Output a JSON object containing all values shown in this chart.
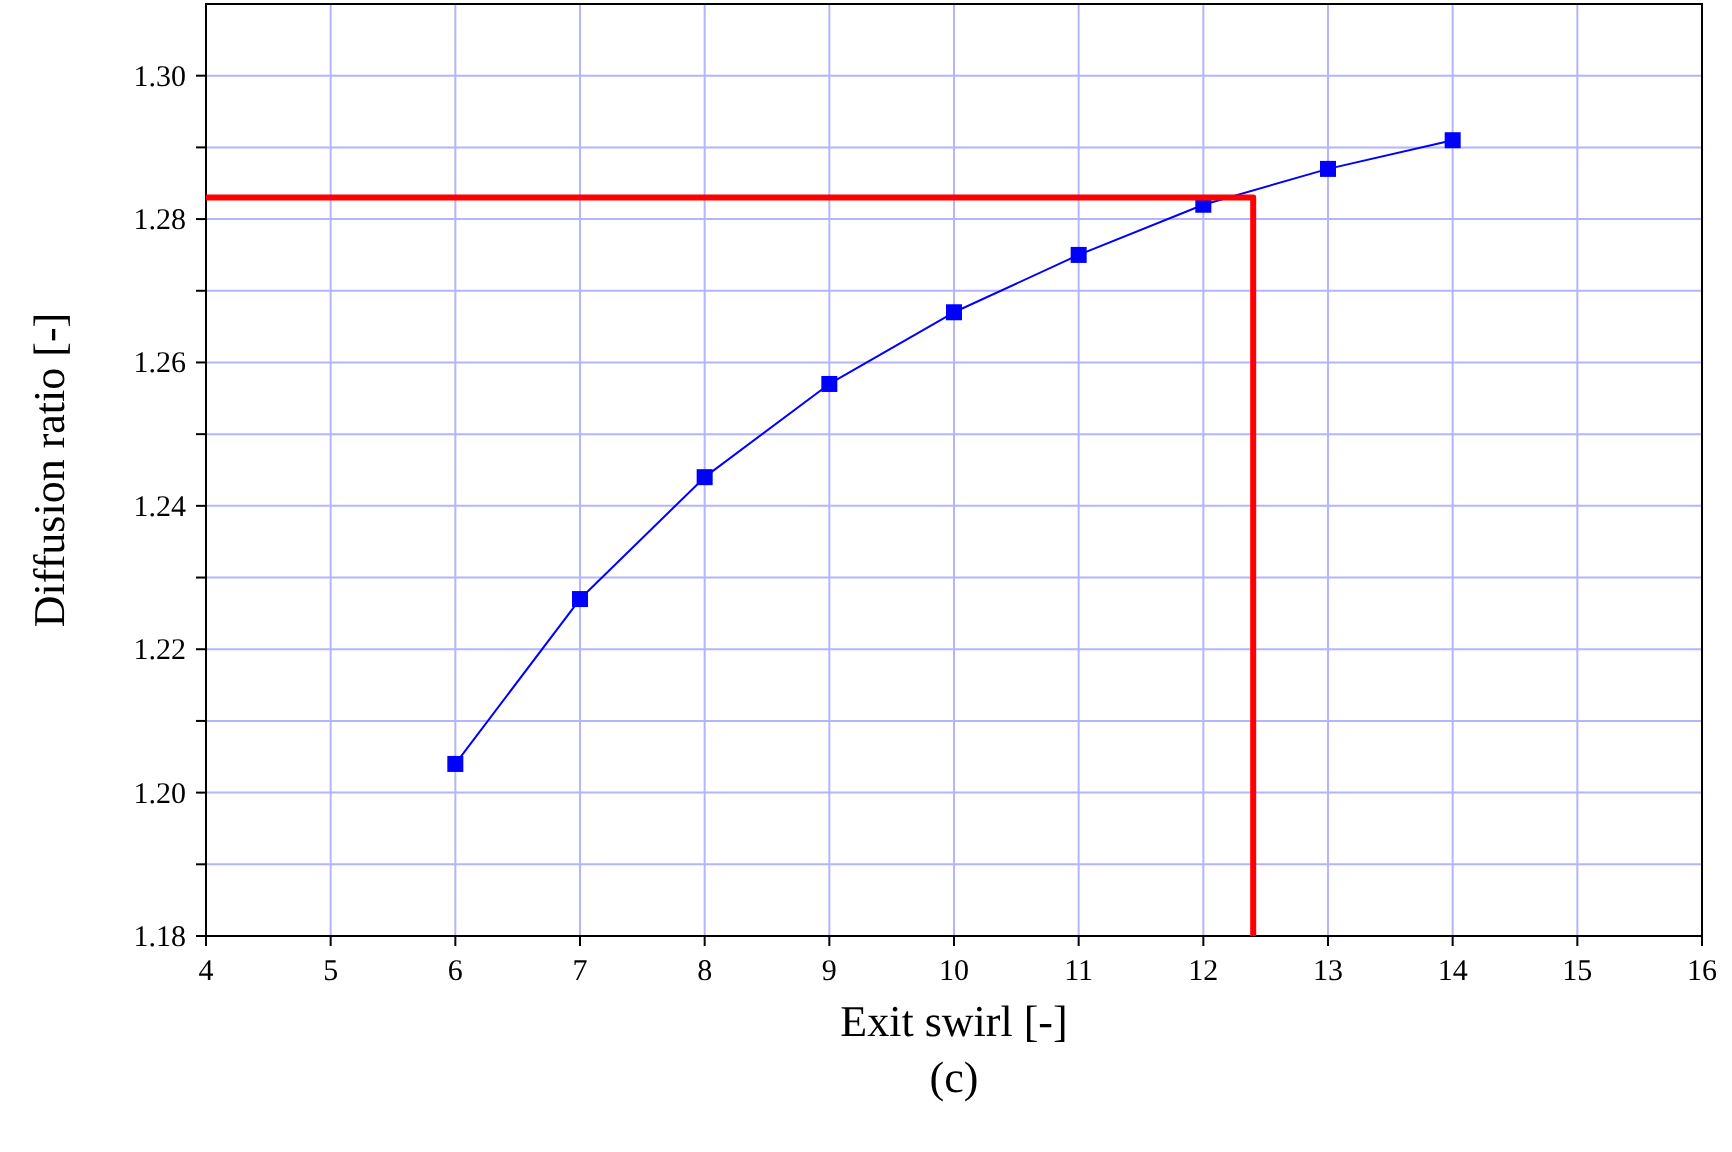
{
  "chart_data": {
    "type": "line",
    "xlabel": "Exit swirl [-]",
    "ylabel": "Diffusion ratio [-]",
    "annotations": [
      "(c)"
    ],
    "xlim": [
      4,
      16
    ],
    "xticks": [
      4,
      5,
      6,
      7,
      8,
      9,
      10,
      11,
      12,
      13,
      14,
      15,
      16
    ],
    "ylim": [
      1.18,
      1.31
    ],
    "yticks": [
      1.18,
      {
        "value": 1.19,
        "label": null
      },
      "1.20",
      {
        "value": 1.21,
        "label": null
      },
      1.22,
      {
        "value": 1.23,
        "label": null
      },
      1.24,
      {
        "value": 1.25,
        "label": null
      },
      1.26,
      {
        "value": 1.27,
        "label": null
      },
      1.28,
      {
        "value": 1.29,
        "label": null
      },
      "1.30"
    ],
    "grid": true,
    "series": [
      {
        "color": "#0000ff",
        "marker": "square",
        "x": [
          6,
          7,
          8,
          9,
          10,
          11,
          12,
          13,
          14
        ],
        "values": [
          1.204,
          1.227,
          1.244,
          1.257,
          1.267,
          1.275,
          1.282,
          1.287,
          1.291
        ]
      },
      {
        "color": "#ff0000",
        "marker": "none",
        "x": [
          4,
          12.4,
          12.4
        ],
        "values": [
          1.283,
          1.283,
          1.18
        ]
      }
    ]
  }
}
